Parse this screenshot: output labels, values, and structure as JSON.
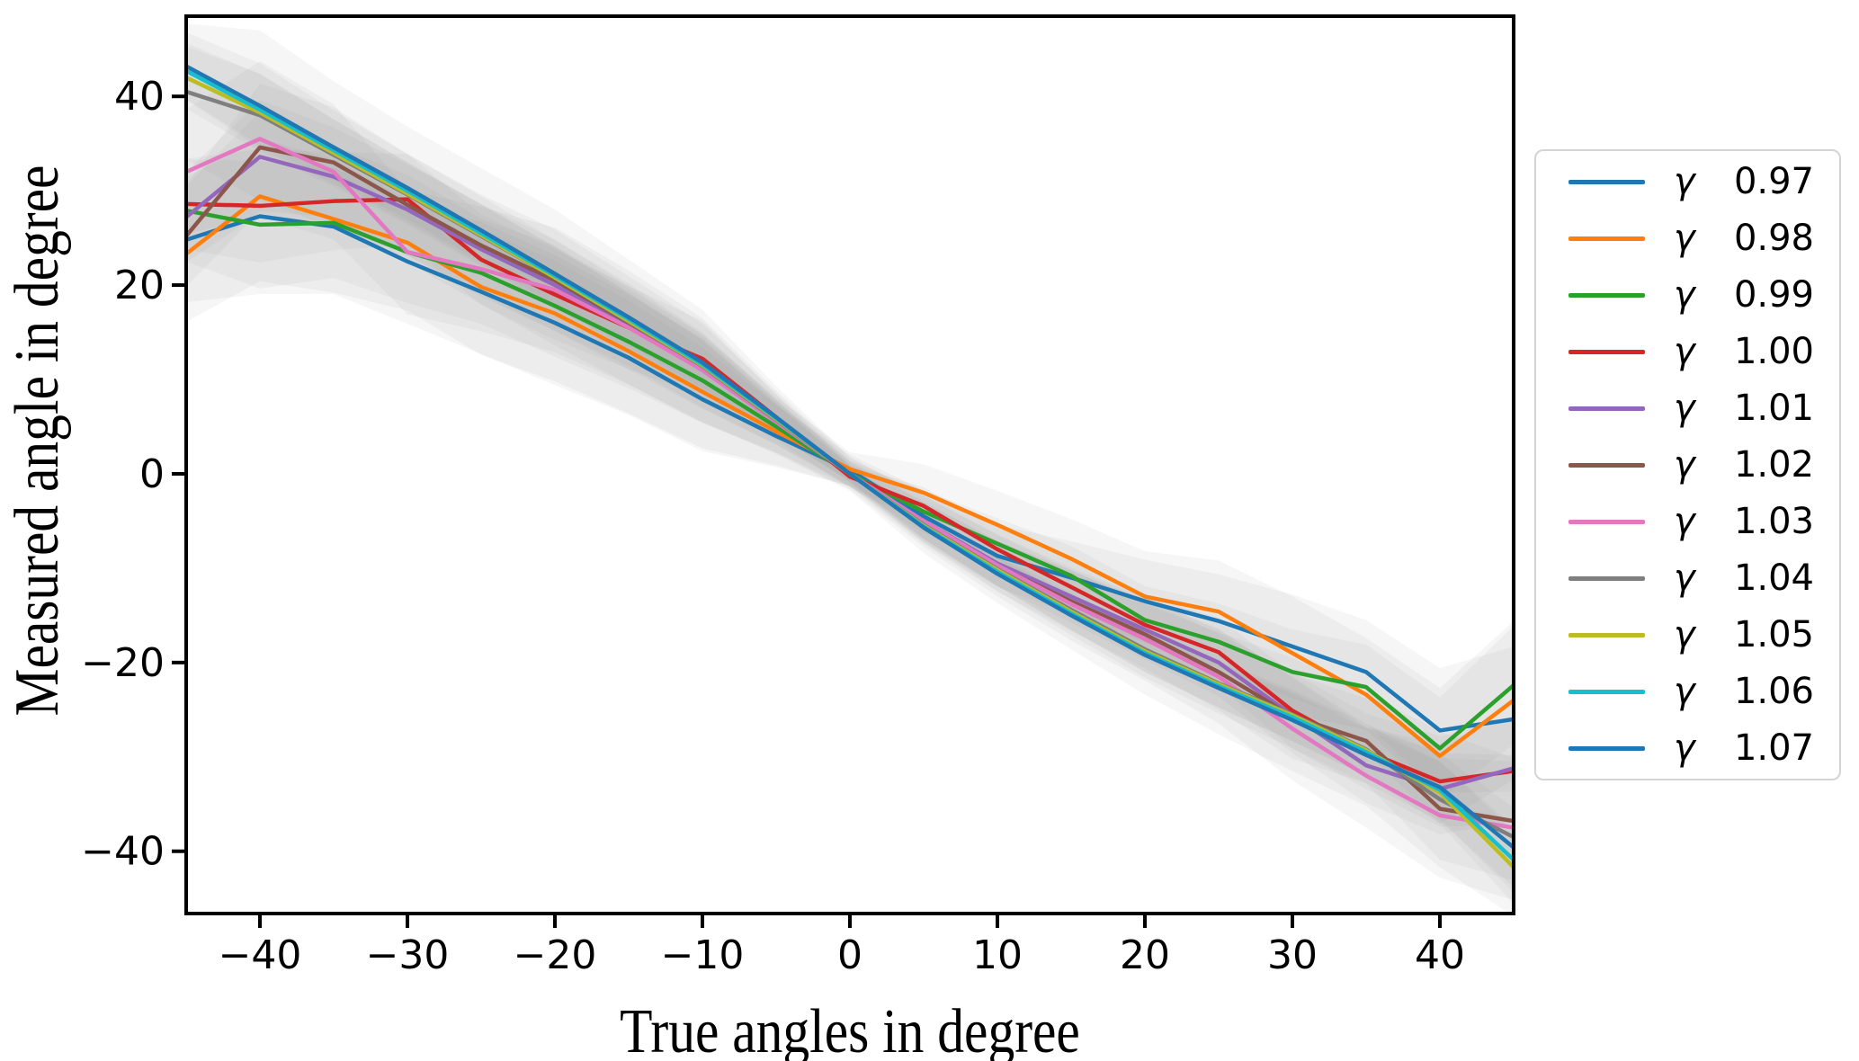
{
  "figure": {
    "background": "#ffffff",
    "spine_color": "#000000",
    "tick_color": "#000000",
    "text_color": "#000000"
  },
  "chart_data": {
    "type": "line",
    "title": "",
    "xlabel": "True angles in degree",
    "ylabel": "Measured angle in degree",
    "xlim": [
      -45,
      45
    ],
    "ylim": [
      -46.6,
      48.5
    ],
    "xticks": [
      -40,
      -30,
      -20,
      -10,
      0,
      10,
      20,
      30,
      40
    ],
    "yticks": [
      -40,
      -20,
      0,
      20,
      40
    ],
    "grid": false,
    "legend_position": "right-outside",
    "legend_symbol": "γ",
    "x": [
      -45,
      -40,
      -35,
      -30,
      -25,
      -20,
      -15,
      -10,
      -5,
      0,
      5,
      10,
      15,
      20,
      25,
      30,
      35,
      40,
      45
    ],
    "band_color": "#8a8a8a",
    "band_alpha": 0.08,
    "band_width": [
      6,
      7.5,
      6.5,
      6,
      6,
      6,
      5.5,
      5,
      3,
      1.5,
      2.5,
      3,
      3.5,
      4,
      4.5,
      5,
      5,
      6,
      7
    ],
    "series": [
      {
        "symbol": "γ",
        "label": "0.97",
        "color": "#1f77b4",
        "band_scale": 1.1,
        "values": [
          24.8,
          27.3,
          26.2,
          22.5,
          19.3,
          16.0,
          12.3,
          7.9,
          4.0,
          0.4,
          -4.5,
          -8.7,
          -11.0,
          -13.5,
          -15.6,
          -18.3,
          -21.0,
          -27.2,
          -26.0
        ]
      },
      {
        "symbol": "γ",
        "label": "0.98",
        "color": "#ff7f0e",
        "band_scale": 1.2,
        "values": [
          23.3,
          29.4,
          27.0,
          24.5,
          19.8,
          17.0,
          13.0,
          8.7,
          4.5,
          0.5,
          -2.0,
          -5.4,
          -9.0,
          -13.0,
          -14.6,
          -19.0,
          -23.4,
          -29.9,
          -24.0
        ]
      },
      {
        "symbol": "γ",
        "label": "0.99",
        "color": "#2ca02c",
        "band_scale": 0.9,
        "values": [
          27.9,
          26.4,
          26.6,
          23.5,
          21.3,
          17.8,
          14.0,
          9.9,
          5.0,
          0.0,
          -4.0,
          -7.4,
          -10.8,
          -15.5,
          -17.8,
          -21.0,
          -22.6,
          -29.1,
          -22.4
        ]
      },
      {
        "symbol": "γ",
        "label": "1.00",
        "color": "#d62728",
        "band_scale": 0.8,
        "values": [
          28.6,
          28.4,
          28.9,
          29.1,
          22.7,
          19.0,
          15.5,
          12.2,
          6.0,
          -0.3,
          -3.4,
          -8.0,
          -12.0,
          -16.0,
          -18.9,
          -25.1,
          -29.4,
          -32.6,
          -31.5
        ]
      },
      {
        "symbol": "γ",
        "label": "1.01",
        "color": "#9467bd",
        "band_scale": 0.8,
        "values": [
          27.2,
          33.6,
          31.5,
          28.0,
          23.8,
          20.0,
          15.8,
          11.0,
          5.5,
          0.0,
          -5.0,
          -9.5,
          -13.0,
          -16.5,
          -20.0,
          -25.6,
          -30.9,
          -33.4,
          -31.2
        ]
      },
      {
        "symbol": "γ",
        "label": "1.02",
        "color": "#8c564b",
        "band_scale": 0.9,
        "values": [
          25.2,
          34.6,
          33.0,
          28.5,
          24.2,
          20.5,
          16.0,
          11.4,
          5.8,
          0.0,
          -5.2,
          -9.8,
          -13.5,
          -17.0,
          -21.0,
          -25.7,
          -28.3,
          -35.5,
          -36.8
        ]
      },
      {
        "symbol": "γ",
        "label": "1.03",
        "color": "#e377c2",
        "band_scale": 1.1,
        "values": [
          32.0,
          35.5,
          32.0,
          23.5,
          21.7,
          19.5,
          15.5,
          11.0,
          5.5,
          0.0,
          -5.0,
          -9.7,
          -13.8,
          -17.5,
          -21.5,
          -27.0,
          -32.0,
          -36.2,
          -37.5
        ]
      },
      {
        "symbol": "γ",
        "label": "1.04",
        "color": "#7f7f7f",
        "band_scale": 1.2,
        "values": [
          40.5,
          38.0,
          33.8,
          29.6,
          25.2,
          20.8,
          16.1,
          11.4,
          5.7,
          0.0,
          -5.4,
          -10.1,
          -14.4,
          -18.6,
          -22.2,
          -25.5,
          -29.2,
          -34.5,
          -38.5
        ]
      },
      {
        "symbol": "γ",
        "label": "1.05",
        "color": "#bcbd22",
        "band_scale": 0.55,
        "values": [
          42.0,
          38.3,
          34.0,
          29.7,
          25.3,
          20.8,
          16.2,
          11.5,
          5.8,
          0.0,
          -5.5,
          -10.2,
          -14.6,
          -18.8,
          -22.3,
          -25.6,
          -29.3,
          -33.8,
          -41.7
        ]
      },
      {
        "symbol": "γ",
        "label": "1.06",
        "color": "#17becf",
        "band_scale": 0.5,
        "values": [
          42.7,
          38.6,
          34.3,
          30.0,
          25.5,
          21.0,
          16.4,
          11.6,
          5.9,
          0.0,
          -5.6,
          -10.4,
          -14.8,
          -19.0,
          -22.5,
          -25.8,
          -29.5,
          -33.5,
          -40.9
        ]
      },
      {
        "symbol": "γ",
        "label": "1.07",
        "color": "#1f77b4",
        "band_scale": 0.6,
        "values": [
          43.2,
          39.0,
          34.6,
          30.3,
          25.8,
          21.2,
          16.6,
          11.8,
          6.0,
          0.0,
          -5.7,
          -10.6,
          -15.0,
          -19.2,
          -22.7,
          -26.1,
          -29.8,
          -33.2,
          -39.6
        ]
      }
    ]
  }
}
